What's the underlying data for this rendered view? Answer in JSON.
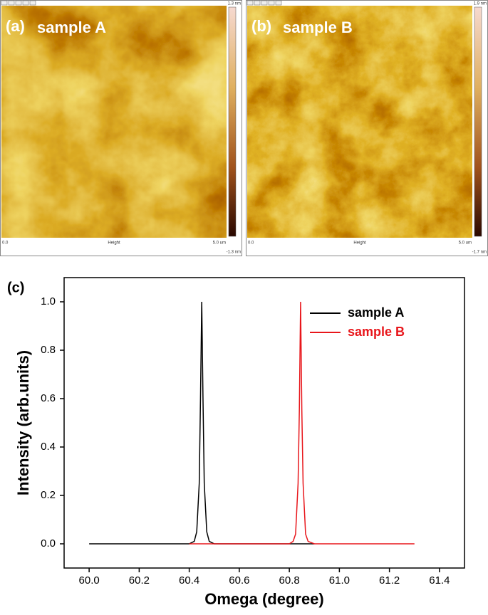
{
  "images": [
    {
      "label": "(a)",
      "title": "sample A",
      "scale_max": "1.3 nm",
      "scale_min": "-1.3 nm",
      "x_start": "0.0",
      "x_end": "5.0 um",
      "caption": "Height"
    },
    {
      "label": "(b)",
      "title": "sample B",
      "scale_max": "1.9 nm",
      "scale_min": "-1.7 nm",
      "x_start": "0.0",
      "x_end": "5.0 um",
      "caption": "Height"
    }
  ],
  "chart_data": {
    "type": "line",
    "panel_label": "(c)",
    "x_label": "Omega (degree)",
    "y_label": "Intensity (arb.units)",
    "x": [
      60.0,
      60.1,
      60.2,
      60.3,
      60.4,
      60.42,
      60.43,
      60.44,
      60.445,
      60.45,
      60.455,
      60.46,
      60.47,
      60.48,
      60.5,
      60.6,
      60.7,
      60.8,
      60.815,
      60.825,
      60.835,
      60.84,
      60.845,
      60.85,
      60.855,
      60.865,
      60.875,
      60.9,
      61.0,
      61.1,
      61.2,
      61.3
    ],
    "series": [
      {
        "name": "sample A",
        "color": "#000000",
        "values": [
          0,
          0,
          0,
          0,
          0,
          0.01,
          0.05,
          0.25,
          0.6,
          1.0,
          0.6,
          0.25,
          0.05,
          0.01,
          0,
          0,
          0,
          0,
          0,
          0,
          0,
          0,
          0,
          0,
          0,
          0,
          0,
          0,
          null,
          null,
          null,
          null
        ]
      },
      {
        "name": "sample B",
        "color": "#e8161b",
        "values": [
          null,
          null,
          null,
          null,
          0,
          0,
          0,
          0,
          0,
          0,
          0,
          0,
          0,
          0,
          0,
          0,
          0,
          0,
          0.01,
          0.04,
          0.25,
          0.55,
          1.0,
          0.55,
          0.25,
          0.04,
          0.01,
          0,
          0,
          0,
          0,
          0
        ]
      }
    ],
    "xlim": [
      59.9,
      61.5
    ],
    "xticks": [
      {
        "value": 60.0,
        "label": "60.0"
      },
      60.2,
      60.4,
      60.6,
      60.8,
      {
        "value": 61.0,
        "label": "61.0"
      },
      61.2,
      61.4
    ],
    "ylim": [
      -0.1,
      1.1
    ],
    "yticks": [
      {
        "value": 0.0,
        "label": "0.0"
      },
      0.2,
      0.4,
      0.6,
      0.8,
      {
        "value": 1.0,
        "label": "1.0"
      }
    ],
    "legend": "upper-right"
  }
}
